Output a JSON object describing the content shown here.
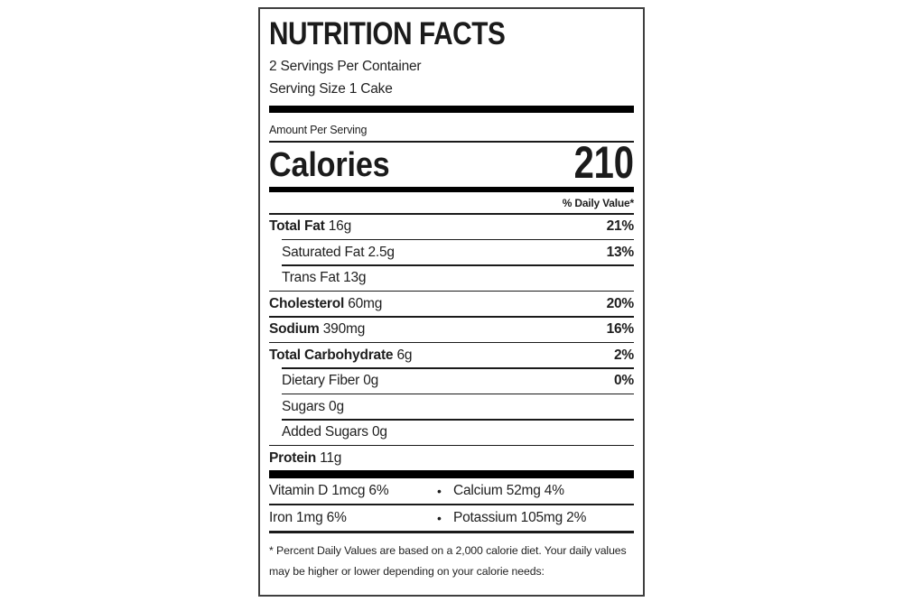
{
  "label": {
    "title": "NUTRITION FACTS",
    "servings_per_container": "2 Servings Per Container",
    "serving_size": "Serving Size 1 Cake",
    "amount_per_serving": "Amount Per Serving",
    "calories_label": "Calories",
    "calories_value": "210",
    "daily_value_header": "% Daily Value*",
    "nutrients": [
      {
        "name": "Total Fat",
        "amount": "16g",
        "dv": "21%"
      },
      {
        "name": "Saturated Fat",
        "amount": "2.5g",
        "dv": "13%"
      },
      {
        "name": "Trans Fat",
        "amount": "13g",
        "dv": ""
      },
      {
        "name": "Cholesterol",
        "amount": "60mg",
        "dv": "20%"
      },
      {
        "name": "Sodium",
        "amount": "390mg",
        "dv": "16%"
      },
      {
        "name": "Total Carbohydrate",
        "amount": "6g",
        "dv": "2%"
      },
      {
        "name": "Dietary Fiber",
        "amount": "0g",
        "dv": "0%"
      },
      {
        "name": "Sugars",
        "amount": "0g",
        "dv": ""
      },
      {
        "name": "Added Sugars",
        "amount": "0g",
        "dv": ""
      },
      {
        "name": "Protein",
        "amount": "11g",
        "dv": ""
      }
    ],
    "bullet": "•",
    "vitamins": [
      {
        "left": "Vitamin D 1mcg 6%",
        "right": "Calcium 52mg 4%"
      },
      {
        "left": "Iron 1mg 6%",
        "right": "Potassium 105mg 2%"
      }
    ],
    "footnote": "* Percent Daily Values are based on a 2,000 calorie diet. Your daily values may be higher or lower depending on your calorie needs:"
  },
  "colors": {
    "background": "#ffffff",
    "text": "#1e1e1e",
    "bar": "#000000",
    "border": "#3f3f3f"
  }
}
